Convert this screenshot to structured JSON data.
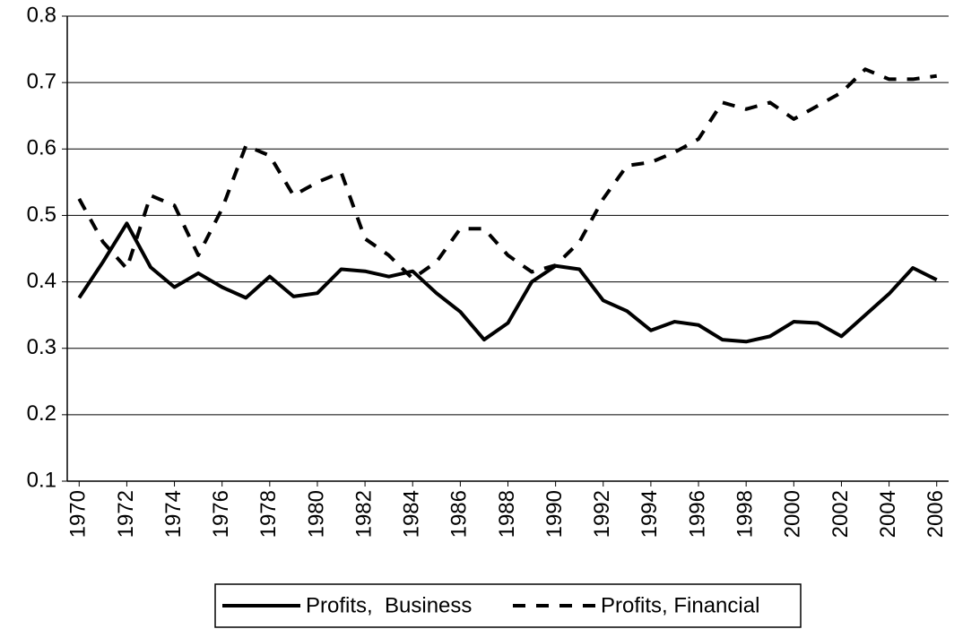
{
  "chart_data": {
    "type": "line",
    "x": [
      1970,
      1971,
      1972,
      1973,
      1974,
      1975,
      1976,
      1977,
      1978,
      1979,
      1980,
      1981,
      1982,
      1983,
      1984,
      1985,
      1986,
      1987,
      1988,
      1989,
      1990,
      1991,
      1992,
      1993,
      1994,
      1995,
      1996,
      1997,
      1998,
      1999,
      2000,
      2001,
      2002,
      2003,
      2004,
      2005,
      2006
    ],
    "xlim": [
      1969.5,
      2006.5
    ],
    "xticks": [
      1970,
      1972,
      1974,
      1976,
      1978,
      1980,
      1982,
      1984,
      1986,
      1988,
      1990,
      1992,
      1994,
      1996,
      1998,
      2000,
      2002,
      2004,
      2006
    ],
    "ylim": [
      0.1,
      0.8
    ],
    "yticks": [
      0.1,
      0.2,
      0.3,
      0.4,
      0.5,
      0.6,
      0.7,
      0.8
    ],
    "grid": true,
    "legend": "bottom",
    "series": [
      {
        "name": "Profits,  Business",
        "color": "#000000",
        "dash": "solid",
        "values": [
          0.376,
          0.43,
          0.488,
          0.422,
          0.392,
          0.413,
          0.392,
          0.376,
          0.408,
          0.378,
          0.383,
          0.419,
          0.416,
          0.408,
          0.416,
          0.383,
          0.355,
          0.313,
          0.338,
          0.4,
          0.424,
          0.419,
          0.372,
          0.356,
          0.327,
          0.34,
          0.335,
          0.313,
          0.31,
          0.318,
          0.34,
          0.338,
          0.318,
          0.35,
          0.382,
          0.421,
          0.403
        ]
      },
      {
        "name": "Profits, Financial",
        "color": "#000000",
        "dash": "dashed",
        "values": [
          0.525,
          0.46,
          0.42,
          0.53,
          0.515,
          0.44,
          0.51,
          0.605,
          0.59,
          0.53,
          0.55,
          0.565,
          0.465,
          0.44,
          0.405,
          0.43,
          0.48,
          0.48,
          0.44,
          0.415,
          0.425,
          0.46,
          0.525,
          0.575,
          0.58,
          0.595,
          0.615,
          0.67,
          0.66,
          0.67,
          0.645,
          0.665,
          0.685,
          0.72,
          0.705,
          0.705,
          0.71
        ]
      }
    ]
  }
}
